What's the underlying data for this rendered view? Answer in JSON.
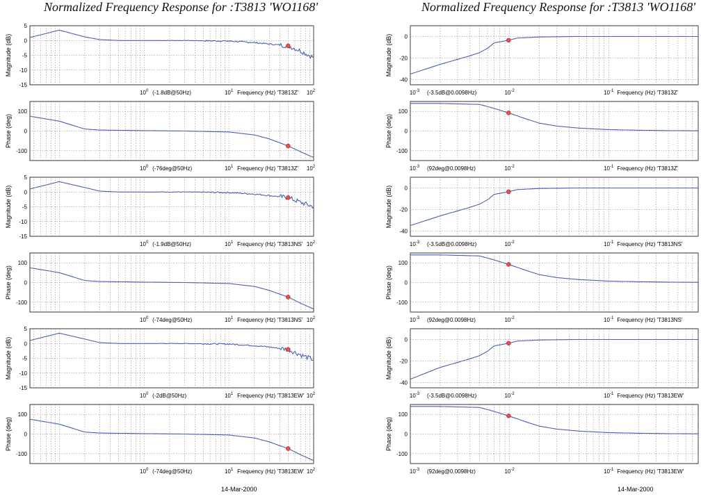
{
  "columns": [
    {
      "title": "Normalized Frequency Response for :T3813  'WO1168'",
      "date": "14-Mar-2000",
      "xrange": [
        0.045,
        100
      ],
      "xtick_labels": [
        "10^0",
        "10^1",
        "10^2"
      ]
    },
    {
      "title": "Normalized Frequency Response for :T3813  'WO1168'",
      "date": "14-Mar-2000",
      "xrange": [
        0.001,
        0.8
      ],
      "xtick_labels": [
        "10^-3",
        "10^-2",
        "10^-1"
      ]
    }
  ],
  "chart_data": [
    {
      "type": "line",
      "col": 0,
      "kind": "mag",
      "ylabel": "Magnitude (dB)",
      "ylim": [
        -15,
        5
      ],
      "yticks": [
        5,
        0,
        -5,
        -10,
        -15
      ],
      "annotation": "(-1.8dB@50Hz)",
      "xlabel": "Frequency (Hz)  'T3813Z'",
      "marker": [
        50,
        -1.8
      ],
      "noisy": true,
      "x": [
        0.045,
        0.1,
        0.2,
        0.3,
        0.5,
        1,
        3,
        10,
        20,
        30,
        50,
        70,
        100
      ],
      "y": [
        1,
        3.5,
        1.2,
        0.3,
        0,
        0,
        0,
        -0.2,
        -0.7,
        -1.2,
        -1.8,
        -3.5,
        -5.8
      ],
      "grid": true
    },
    {
      "type": "line",
      "col": 0,
      "kind": "phase",
      "ylabel": "Phase (deg)",
      "ylim": [
        -150,
        150
      ],
      "yticks": [
        100,
        0,
        -100
      ],
      "annotation": "(-76deg@50Hz)",
      "xlabel": "Frequency (Hz)  'T3813Z'",
      "marker": [
        50,
        -76
      ],
      "noisy": false,
      "x": [
        0.045,
        0.1,
        0.2,
        0.3,
        1,
        3,
        10,
        20,
        30,
        50,
        70,
        100
      ],
      "y": [
        75,
        50,
        10,
        5,
        2,
        0,
        -5,
        -20,
        -40,
        -76,
        -105,
        -135
      ],
      "grid": true
    },
    {
      "type": "line",
      "col": 0,
      "kind": "mag",
      "ylabel": "Magnitude (dB)",
      "ylim": [
        -15,
        5
      ],
      "yticks": [
        5,
        0,
        -5,
        -10,
        -15
      ],
      "annotation": "(-1.9dB@50Hz)",
      "xlabel": "Frequency (Hz)  'T3813NS'",
      "marker": [
        50,
        -1.9
      ],
      "noisy": true,
      "x": [
        0.045,
        0.1,
        0.2,
        0.3,
        0.5,
        1,
        3,
        10,
        20,
        30,
        50,
        70,
        100
      ],
      "y": [
        1,
        3.5,
        1.5,
        0.3,
        0,
        0,
        0,
        -0.2,
        -0.7,
        -1.2,
        -1.9,
        -3.5,
        -5
      ],
      "grid": true
    },
    {
      "type": "line",
      "col": 0,
      "kind": "phase",
      "ylabel": "Phase (deg)",
      "ylim": [
        -150,
        150
      ],
      "yticks": [
        100,
        0,
        -100
      ],
      "annotation": "(-74deg@50Hz)",
      "xlabel": "Frequency (Hz)  'T3813NS'",
      "marker": [
        50,
        -74
      ],
      "noisy": false,
      "x": [
        0.045,
        0.1,
        0.2,
        0.3,
        1,
        3,
        10,
        20,
        30,
        50,
        70,
        100
      ],
      "y": [
        75,
        50,
        10,
        5,
        2,
        0,
        -5,
        -20,
        -40,
        -74,
        -105,
        -135
      ],
      "grid": true
    },
    {
      "type": "line",
      "col": 0,
      "kind": "mag",
      "ylabel": "Magnitude (dB)",
      "ylim": [
        -15,
        5
      ],
      "yticks": [
        5,
        0,
        -5,
        -10,
        -15
      ],
      "annotation": "(-2dB@50Hz)",
      "xlabel": "Frequency (Hz)  'T3813EW'",
      "marker": [
        50,
        -2
      ],
      "noisy": true,
      "x": [
        0.045,
        0.1,
        0.2,
        0.3,
        0.5,
        1,
        3,
        10,
        20,
        30,
        50,
        70,
        100
      ],
      "y": [
        1,
        3.5,
        1.5,
        0.3,
        0,
        0,
        0,
        -0.2,
        -0.7,
        -1.2,
        -2,
        -3.8,
        -5.5
      ],
      "grid": true
    },
    {
      "type": "line",
      "col": 0,
      "kind": "phase",
      "ylabel": "Phase (deg)",
      "ylim": [
        -150,
        150
      ],
      "yticks": [
        100,
        0,
        -100
      ],
      "annotation": "(-74deg@50Hz)",
      "xlabel": "Frequency (Hz)  'T3813EW'",
      "marker": [
        50,
        -74
      ],
      "noisy": false,
      "x": [
        0.045,
        0.1,
        0.2,
        0.3,
        1,
        3,
        10,
        20,
        30,
        50,
        70,
        100
      ],
      "y": [
        75,
        50,
        10,
        5,
        2,
        0,
        -5,
        -20,
        -40,
        -74,
        -105,
        -135
      ],
      "grid": true
    },
    {
      "type": "line",
      "col": 1,
      "kind": "mag",
      "ylabel": "Magnitude (dB)",
      "ylim": [
        -45,
        10
      ],
      "yticks": [
        0,
        -20,
        -40
      ],
      "annotation": "(-3.5dB@0.0098Hz)",
      "xlabel": "Frequency (Hz)  'T3813Z'",
      "marker": [
        0.0098,
        -3.5
      ],
      "noisy": false,
      "x": [
        0.001,
        0.002,
        0.004,
        0.005,
        0.006,
        0.007,
        0.0098,
        0.012,
        0.02,
        0.05,
        0.1,
        0.8
      ],
      "y": [
        -35,
        -26,
        -18,
        -15,
        -11,
        -6,
        -3.5,
        -1.5,
        -0.5,
        0,
        0,
        0
      ],
      "grid": true
    },
    {
      "type": "line",
      "col": 1,
      "kind": "phase",
      "ylabel": "Phase (deg)",
      "ylim": [
        -150,
        150
      ],
      "yticks": [
        100,
        0,
        -100
      ],
      "annotation": "(92deg@0.0098Hz)",
      "xlabel": "Frequency (Hz)  'T3813Z'",
      "marker": [
        0.0098,
        92
      ],
      "noisy": false,
      "x": [
        0.001,
        0.002,
        0.005,
        0.007,
        0.0098,
        0.015,
        0.02,
        0.03,
        0.05,
        0.1,
        0.2,
        0.4,
        0.8
      ],
      "y": [
        140,
        140,
        135,
        115,
        92,
        60,
        40,
        25,
        15,
        7,
        4,
        2,
        1
      ],
      "grid": true
    },
    {
      "type": "line",
      "col": 1,
      "kind": "mag",
      "ylabel": "Magnitude (dB)",
      "ylim": [
        -45,
        10
      ],
      "yticks": [
        0,
        -20,
        -40
      ],
      "annotation": "(-3.5dB@0.0098Hz)",
      "xlabel": "Frequency (Hz)  'T3813NS'",
      "marker": [
        0.0098,
        -3.5
      ],
      "noisy": false,
      "x": [
        0.001,
        0.002,
        0.004,
        0.005,
        0.006,
        0.007,
        0.0098,
        0.012,
        0.02,
        0.05,
        0.1,
        0.8
      ],
      "y": [
        -35,
        -26,
        -18,
        -15,
        -11,
        -6,
        -3.5,
        -1.5,
        -0.5,
        0,
        0,
        0
      ],
      "grid": true
    },
    {
      "type": "line",
      "col": 1,
      "kind": "phase",
      "ylabel": "Phase (deg)",
      "ylim": [
        -150,
        150
      ],
      "yticks": [
        100,
        0,
        -100
      ],
      "annotation": "(92deg@0.0098Hz)",
      "xlabel": "Frequency (Hz)  'T3813NS'",
      "marker": [
        0.0098,
        92
      ],
      "noisy": false,
      "x": [
        0.001,
        0.002,
        0.005,
        0.007,
        0.0098,
        0.015,
        0.02,
        0.03,
        0.05,
        0.1,
        0.2,
        0.4,
        0.8
      ],
      "y": [
        140,
        140,
        135,
        115,
        92,
        60,
        40,
        25,
        15,
        7,
        4,
        2,
        1
      ],
      "grid": true
    },
    {
      "type": "line",
      "col": 1,
      "kind": "mag",
      "ylabel": "Magnitude (dB)",
      "ylim": [
        -45,
        10
      ],
      "yticks": [
        0,
        -20,
        -40
      ],
      "annotation": "(-3.5dB@0.0098Hz)",
      "xlabel": "Frequency (Hz)  'T3813EW'",
      "marker": [
        0.0098,
        -3.5
      ],
      "noisy": false,
      "x": [
        0.001,
        0.002,
        0.004,
        0.005,
        0.006,
        0.007,
        0.0098,
        0.012,
        0.02,
        0.05,
        0.1,
        0.8
      ],
      "y": [
        -37,
        -26,
        -18,
        -15,
        -11,
        -6,
        -3.5,
        -1.5,
        -0.5,
        0,
        0,
        0
      ],
      "grid": true
    },
    {
      "type": "line",
      "col": 1,
      "kind": "phase",
      "ylabel": "Phase (deg)",
      "ylim": [
        -150,
        150
      ],
      "yticks": [
        100,
        0,
        -100
      ],
      "annotation": "(92deg@0.0098Hz)",
      "xlabel": "Frequency (Hz)  'T3813EW'",
      "marker": [
        0.0098,
        92
      ],
      "noisy": false,
      "x": [
        0.001,
        0.002,
        0.005,
        0.007,
        0.0098,
        0.015,
        0.02,
        0.03,
        0.05,
        0.1,
        0.2,
        0.4,
        0.8
      ],
      "y": [
        140,
        140,
        135,
        115,
        92,
        60,
        40,
        25,
        15,
        7,
        4,
        2,
        1
      ],
      "grid": true
    }
  ],
  "colors": {
    "line": "#4a5fb0",
    "marker": "#e05050",
    "grid": "#777777"
  }
}
